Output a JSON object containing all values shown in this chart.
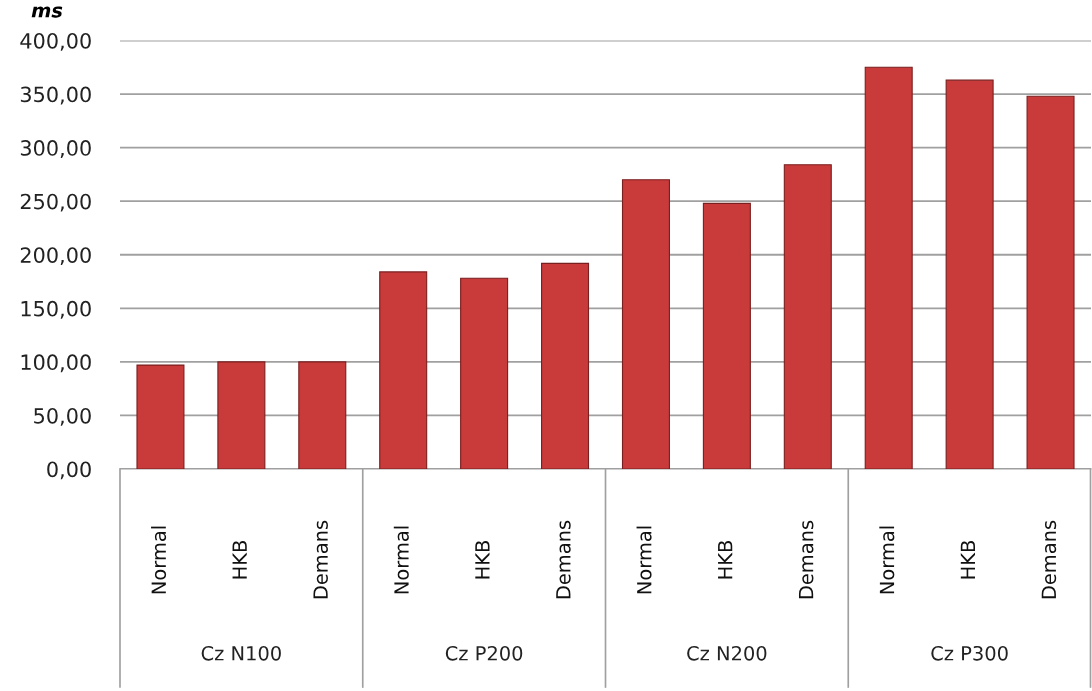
{
  "chart_data": {
    "type": "bar",
    "ylabel": "ms",
    "categories": [
      "Normal",
      "HKB",
      "Demans",
      "Normal",
      "HKB",
      "Demans",
      "Normal",
      "HKB",
      "Demans",
      "Normal",
      "HKB",
      "Demans"
    ],
    "values": [
      97,
      100,
      100,
      184,
      178,
      192,
      270,
      248,
      284,
      375,
      363,
      348
    ],
    "color": "#c93a3a",
    "ylim": [
      0,
      400
    ],
    "yticks": [
      {
        "value": 0,
        "label": "0,00"
      },
      {
        "value": 50,
        "label": "50,00"
      },
      {
        "value": 100,
        "label": "100,00"
      },
      {
        "value": 150,
        "label": "150,00"
      },
      {
        "value": 200,
        "label": "200,00"
      },
      {
        "value": 250,
        "label": "250,00"
      },
      {
        "value": 300,
        "label": "300,00"
      },
      {
        "value": 350,
        "label": "350,00"
      },
      {
        "value": 400,
        "label": "400,00"
      }
    ],
    "grid": "y",
    "annotations": [
      "Cz N100",
      "Cz P200",
      "Cz N200",
      "Cz P300"
    ]
  }
}
